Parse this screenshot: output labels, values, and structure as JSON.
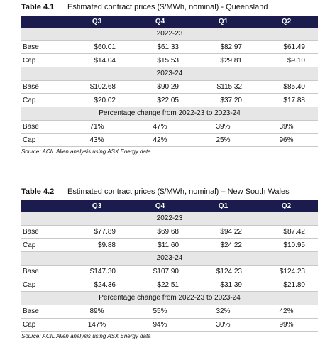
{
  "tables": [
    {
      "number": "Table 4.1",
      "title": "Estimated contract prices ($/MWh, nominal) - Queensland",
      "columns": [
        "Q3",
        "Q4",
        "Q1",
        "Q2"
      ],
      "sections": [
        {
          "heading": "2022-23",
          "rows": [
            {
              "label": "Base",
              "values": [
                "$60.01",
                "$61.33",
                "$82.97",
                "$61.49"
              ]
            },
            {
              "label": "Cap",
              "values": [
                "$14.04",
                "$15.53",
                "$29.81",
                "$9.10"
              ]
            }
          ]
        },
        {
          "heading": "2023-24",
          "rows": [
            {
              "label": "Base",
              "values": [
                "$102.68",
                "$90.29",
                "$115.32",
                "$85.40"
              ]
            },
            {
              "label": "Cap",
              "values": [
                "$20.02",
                "$22.05",
                "$37.20",
                "$17.88"
              ]
            }
          ]
        },
        {
          "heading": "Percentage change from 2022-23 to 2023-24",
          "rows": [
            {
              "label": "Base",
              "values": [
                "71%",
                "47%",
                "39%",
                "39%"
              ]
            },
            {
              "label": "Cap",
              "values": [
                "43%",
                "42%",
                "25%",
                "96%"
              ]
            }
          ]
        }
      ],
      "source": "Source: ACIL Allen analysis using ASX Energy data"
    },
    {
      "number": "Table 4.2",
      "title": "Estimated contract prices ($/MWh, nominal) – New South Wales",
      "columns": [
        "Q3",
        "Q4",
        "Q1",
        "Q2"
      ],
      "sections": [
        {
          "heading": "2022-23",
          "rows": [
            {
              "label": "Base",
              "values": [
                "$77.89",
                "$69.68",
                "$94.22",
                "$87.42"
              ]
            },
            {
              "label": "Cap",
              "values": [
                "$9.88",
                "$11.60",
                "$24.22",
                "$10.95"
              ]
            }
          ]
        },
        {
          "heading": "2023-24",
          "rows": [
            {
              "label": "Base",
              "values": [
                "$147.30",
                "$107.90",
                "$124.23",
                "$124.23"
              ]
            },
            {
              "label": "Cap",
              "values": [
                "$24.36",
                "$22.51",
                "$31.39",
                "$21.80"
              ]
            }
          ]
        },
        {
          "heading": "Percentage change from 2022-23 to 2023-24",
          "rows": [
            {
              "label": "Base",
              "values": [
                "89%",
                "55%",
                "32%",
                "42%"
              ]
            },
            {
              "label": "Cap",
              "values": [
                "147%",
                "94%",
                "30%",
                "99%"
              ]
            }
          ]
        }
      ],
      "source": "Source: ACIL Allen analysis using ASX Energy data"
    }
  ]
}
